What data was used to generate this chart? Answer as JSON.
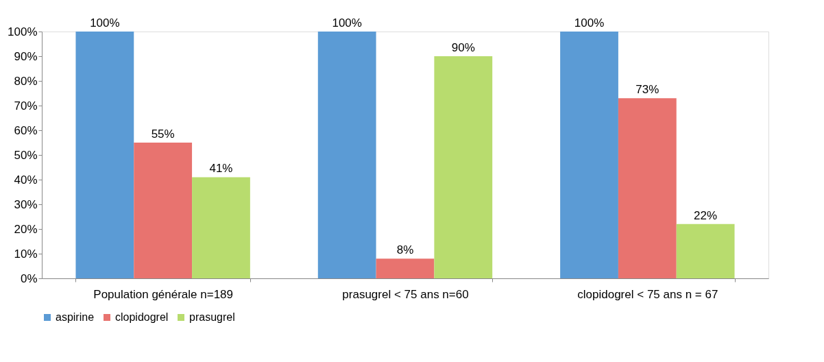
{
  "chart_data": {
    "type": "bar",
    "categories": [
      "Population générale n=189",
      "prasugrel < 75 ans n=60",
      "clopidogrel < 75 ans n = 67"
    ],
    "series": [
      {
        "name": "aspirine",
        "color": "#5b9bd5",
        "values": [
          100,
          100,
          100
        ],
        "value_labels": [
          "100%",
          "100%",
          "100%"
        ]
      },
      {
        "name": "clopidogrel",
        "color": "#e8736f",
        "values": [
          55,
          8,
          73
        ],
        "value_labels": [
          "55%",
          "8%",
          "73%"
        ]
      },
      {
        "name": "prasugrel",
        "color": "#b8dc6e",
        "values": [
          41,
          90,
          22
        ],
        "value_labels": [
          "41%",
          "90%",
          "22%"
        ]
      }
    ],
    "ylim": [
      0,
      100
    ],
    "yticks": [
      {
        "value": 0,
        "label": "0%"
      },
      {
        "value": 10,
        "label": "10%"
      },
      {
        "value": 20,
        "label": "20%"
      },
      {
        "value": 30,
        "label": "30%"
      },
      {
        "value": 40,
        "label": "40%"
      },
      {
        "value": 50,
        "label": "50%"
      },
      {
        "value": 60,
        "label": "60%"
      },
      {
        "value": 70,
        "label": "70%"
      },
      {
        "value": 80,
        "label": "80%"
      },
      {
        "value": 90,
        "label": "90%"
      },
      {
        "value": 100,
        "label": "100%"
      }
    ],
    "grid": false,
    "legend": "bottom"
  }
}
